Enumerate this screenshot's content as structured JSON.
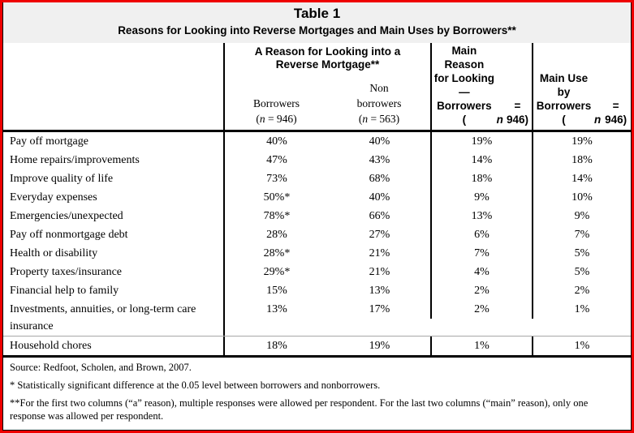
{
  "page": {
    "title": "Table 1",
    "subtitle": "Reasons for Looking into Reverse Mortgages and Main Uses by Borrowers**"
  },
  "header": {
    "reason_group_title": "A Reason for Looking into a\nReverse Mortgage**",
    "col_borrowers": "Borrowers\n(n = 946)",
    "col_nonborrowers": "Non\nborrowers\n(n = 563)",
    "col_main_reason": "Main Reason\nfor Looking—\nBorrowers\n(n = 946)",
    "col_main_use": "Main Use by\nBorrowers\n(n = 946)"
  },
  "rows": [
    {
      "label": "Pay off mortgage",
      "values": [
        "40%",
        "40%",
        "19%",
        "19%"
      ]
    },
    {
      "label": "Home repairs/improvements",
      "values": [
        "47%",
        "43%",
        "14%",
        "18%"
      ]
    },
    {
      "label": "Improve quality of life",
      "values": [
        "73%",
        "68%",
        "18%",
        "14%"
      ]
    },
    {
      "label": "Everyday expenses",
      "values": [
        "50%*",
        "40%",
        "9%",
        "10%"
      ]
    },
    {
      "label": "Emergencies/unexpected",
      "values": [
        "78%*",
        "66%",
        "13%",
        "9%"
      ]
    },
    {
      "label": "Pay off nonmortgage debt",
      "values": [
        "28%",
        "27%",
        "6%",
        "7%"
      ]
    },
    {
      "label": "Health or disability",
      "values": [
        "28%*",
        "21%",
        "7%",
        "5%"
      ]
    },
    {
      "label": "Property taxes/insurance",
      "values": [
        "29%*",
        "21%",
        "4%",
        "5%"
      ]
    },
    {
      "label": "Financial help to family",
      "values": [
        "15%",
        "13%",
        "2%",
        "2%"
      ]
    },
    {
      "label": "Investments, annuities, or long-term care insurance",
      "values": [
        "13%",
        "17%",
        "2%",
        "1%"
      ]
    },
    {
      "label": "Household chores",
      "values": [
        "18%",
        "19%",
        "1%",
        "1%"
      ]
    }
  ],
  "footer": {
    "source": "Source: Redfoot, Scholen, and Brown, 2007.",
    "note1": "* Statistically significant difference at the 0.05 level between borrowers and nonborrowers.",
    "note2": "**For the first two columns (“a” reason), multiple responses were allowed per respondent. For the last two columns (“main” reason), only one response was allowed per respondent."
  },
  "colors": {
    "frame": "#ee0000",
    "title_bg": "#f0f0f0",
    "grid": "#000000"
  }
}
